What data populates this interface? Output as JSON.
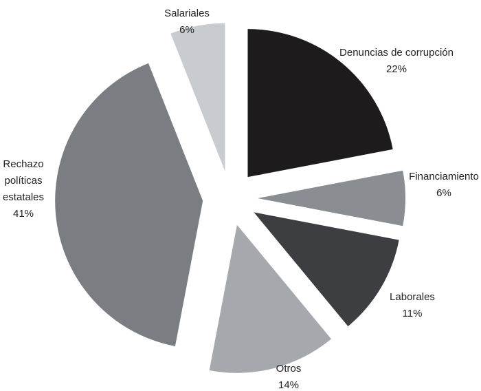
{
  "chart_data": {
    "type": "pie",
    "title": "",
    "slices": [
      {
        "lines": [
          "Denuncias de corrupción"
        ],
        "pct_label": "22%",
        "value": 22,
        "color": "#1d1b1c"
      },
      {
        "lines": [
          "Financiamiento"
        ],
        "pct_label": "6%",
        "value": 6,
        "color": "#8a8e92"
      },
      {
        "lines": [
          "Laborales"
        ],
        "pct_label": "11%",
        "value": 11,
        "color": "#3d3e41"
      },
      {
        "lines": [
          "Otros"
        ],
        "pct_label": "14%",
        "value": 14,
        "color": "#a5a9ad"
      },
      {
        "lines": [
          "Rechazo",
          "políticas",
          "estatales"
        ],
        "pct_label": "41%",
        "value": 41,
        "color": "#7a7e83"
      },
      {
        "lines": [
          "Salariales"
        ],
        "pct_label": "6%",
        "value": 6,
        "color": "#c8cbcf"
      }
    ]
  }
}
